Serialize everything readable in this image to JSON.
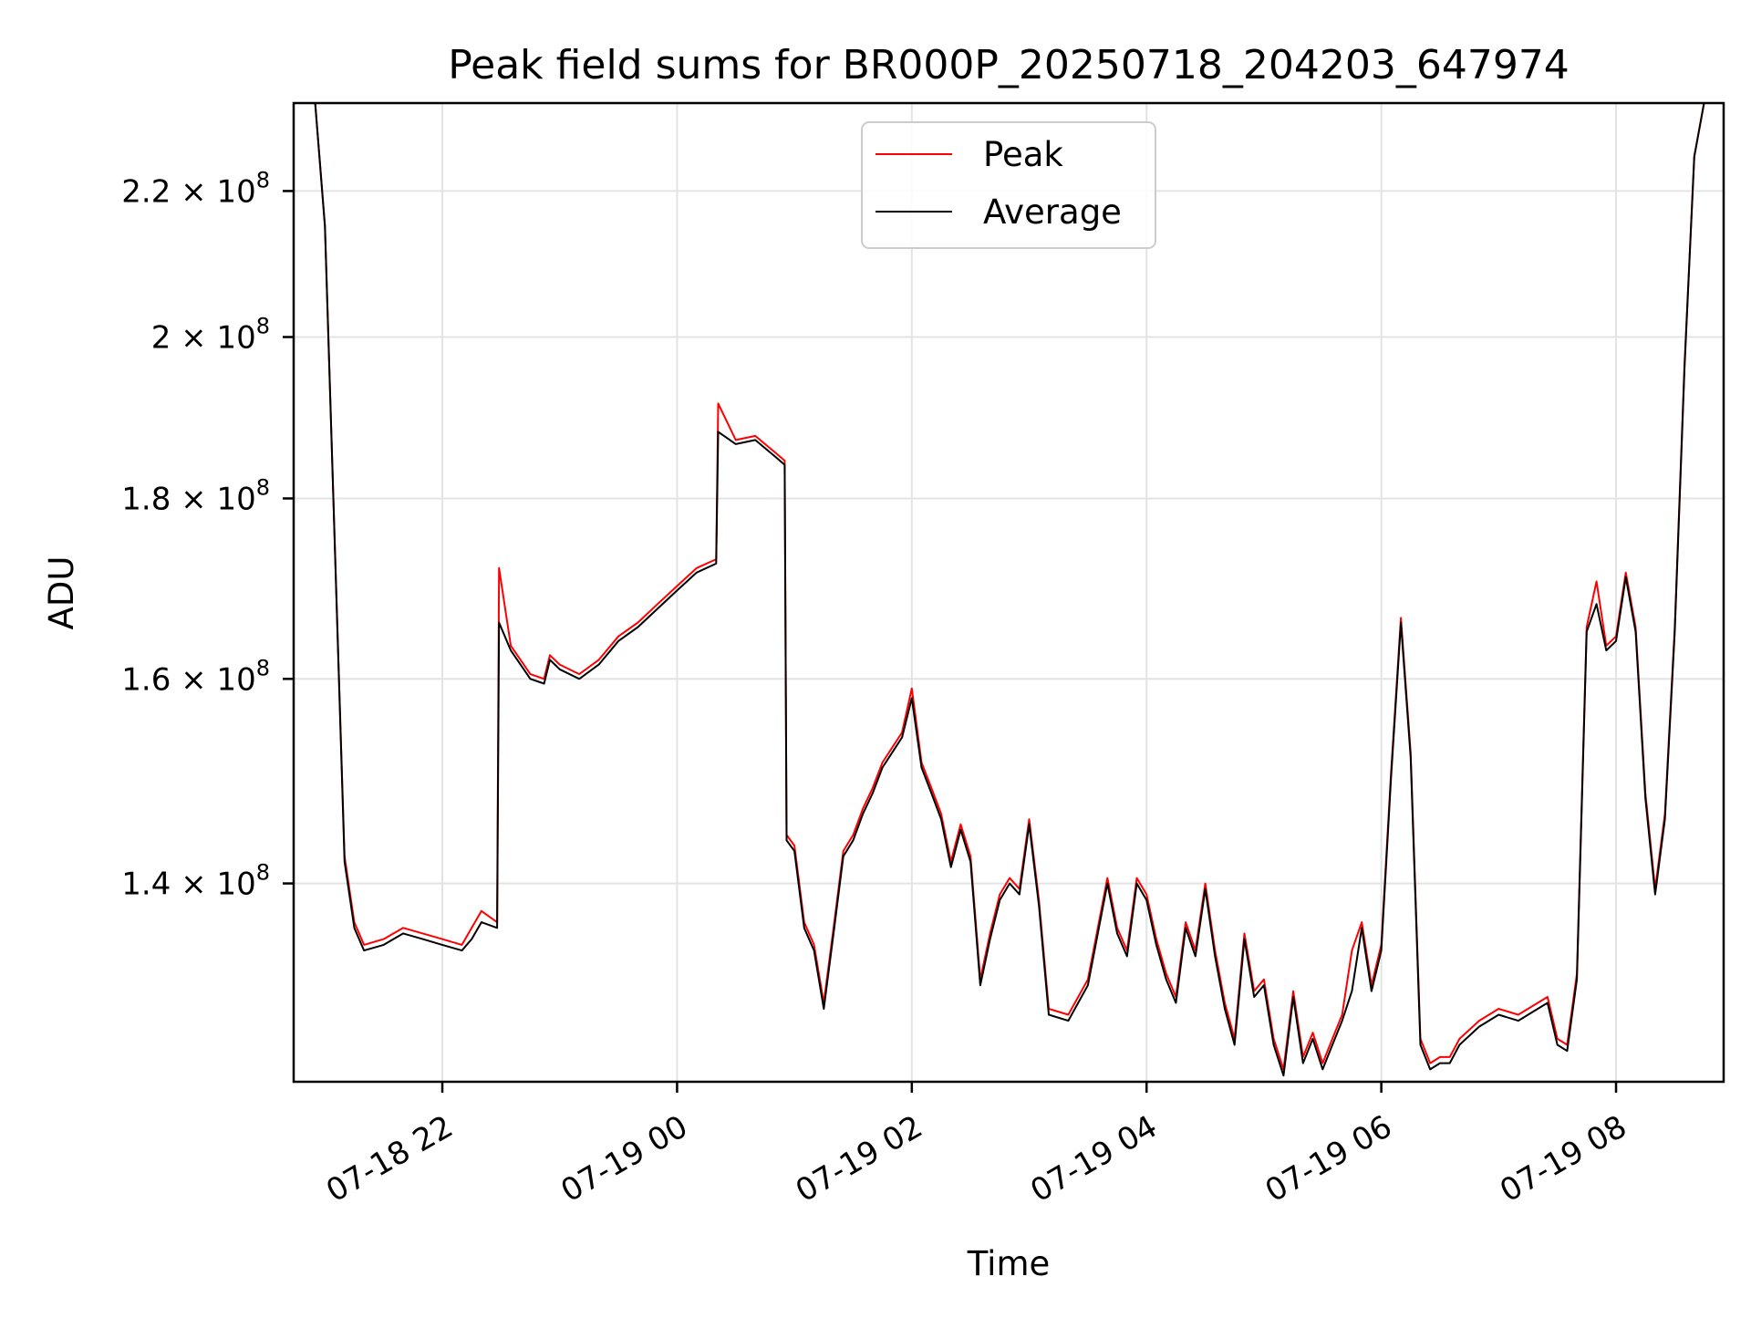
{
  "chart_data": {
    "type": "line",
    "title": "Peak field sums for BR000P_20250718_204203_647974",
    "xlabel": "Time",
    "ylabel": "ADU",
    "y_scale": "log",
    "ylim": [
      123000000,
      233000000
    ],
    "xlim": [
      "07-18 20:44",
      "07-19 08:55"
    ],
    "grid": true,
    "legend_position": "top-center",
    "x_ticks": [
      "07-18 22:00",
      "07-19 00:00",
      "07-19 02:00",
      "07-19 04:00",
      "07-19 06:00",
      "07-19 08:00"
    ],
    "x_tick_labels": [
      "07-18 22",
      "07-19 00",
      "07-19 02",
      "07-19 04",
      "07-19 06",
      "07-19 08"
    ],
    "y_ticks": [
      {
        "value": 140000000,
        "mantissa": "1.4",
        "exponent": "8"
      },
      {
        "value": 160000000,
        "mantissa": "1.6",
        "exponent": "8"
      },
      {
        "value": 180000000,
        "mantissa": "1.8",
        "exponent": "8"
      },
      {
        "value": 200000000,
        "mantissa": "2",
        "exponent": "8"
      },
      {
        "value": 220000000,
        "mantissa": "2.2",
        "exponent": "8"
      }
    ],
    "times_symbol": "×",
    "y_tick_base": "10",
    "series": [
      {
        "name": "Peak",
        "color": "#ff0000"
      },
      {
        "name": "Average",
        "color": "#000000"
      }
    ],
    "x": [
      "07-18 20:44",
      "07-18 20:52",
      "07-18 20:55",
      "07-18 21:00",
      "07-18 21:05",
      "07-18 21:10",
      "07-18 21:15",
      "07-18 21:20",
      "07-18 21:30",
      "07-18 21:40",
      "07-18 21:50",
      "07-18 22:00",
      "07-18 22:10",
      "07-18 22:15",
      "07-18 22:20",
      "07-18 22:28",
      "07-18 22:29",
      "07-18 22:35",
      "07-18 22:45",
      "07-18 22:52",
      "07-18 22:55",
      "07-18 23:00",
      "07-18 23:10",
      "07-18 23:20",
      "07-18 23:30",
      "07-18 23:40",
      "07-18 23:50",
      "07-19 00:00",
      "07-19 00:10",
      "07-19 00:20",
      "07-19 00:21",
      "07-19 00:30",
      "07-19 00:40",
      "07-19 00:45",
      "07-19 00:50",
      "07-19 00:55",
      "07-19 00:56",
      "07-19 01:00",
      "07-19 01:05",
      "07-19 01:10",
      "07-19 01:15",
      "07-19 01:20",
      "07-19 01:25",
      "07-19 01:30",
      "07-19 01:35",
      "07-19 01:40",
      "07-19 01:45",
      "07-19 01:50",
      "07-19 01:55",
      "07-19 02:00",
      "07-19 02:05",
      "07-19 02:10",
      "07-19 02:15",
      "07-19 02:20",
      "07-19 02:25",
      "07-19 02:30",
      "07-19 02:35",
      "07-19 02:40",
      "07-19 02:45",
      "07-19 02:50",
      "07-19 02:55",
      "07-19 03:00",
      "07-19 03:05",
      "07-19 03:10",
      "07-19 03:20",
      "07-19 03:30",
      "07-19 03:40",
      "07-19 03:45",
      "07-19 03:50",
      "07-19 03:55",
      "07-19 04:00",
      "07-19 04:05",
      "07-19 04:10",
      "07-19 04:15",
      "07-19 04:20",
      "07-19 04:25",
      "07-19 04:30",
      "07-19 04:35",
      "07-19 04:40",
      "07-19 04:45",
      "07-19 04:50",
      "07-19 04:55",
      "07-19 05:00",
      "07-19 05:05",
      "07-19 05:10",
      "07-19 05:15",
      "07-19 05:20",
      "07-19 05:25",
      "07-19 05:30",
      "07-19 05:35",
      "07-19 05:40",
      "07-19 05:45",
      "07-19 05:50",
      "07-19 05:55",
      "07-19 06:00",
      "07-19 06:05",
      "07-19 06:10",
      "07-19 06:15",
      "07-19 06:20",
      "07-19 06:25",
      "07-19 06:30",
      "07-19 06:35",
      "07-19 06:40",
      "07-19 06:50",
      "07-19 07:00",
      "07-19 07:10",
      "07-19 07:20",
      "07-19 07:25",
      "07-19 07:30",
      "07-19 07:35",
      "07-19 07:40",
      "07-19 07:45",
      "07-19 07:50",
      "07-19 07:55",
      "07-19 08:00",
      "07-19 08:05",
      "07-19 08:10",
      "07-19 08:15",
      "07-19 08:20",
      "07-19 08:25",
      "07-19 08:30",
      "07-19 08:35",
      "07-19 08:40",
      "07-19 08:45",
      "07-19 08:50",
      "07-19 08:55"
    ],
    "average": [
      233000000,
      233000000,
      233000000,
      215000000,
      175000000,
      142000000,
      136000000,
      134000000,
      134500000,
      135500000,
      135000000,
      134500000,
      134000000,
      135000000,
      136500000,
      136000000,
      166000000,
      163000000,
      160000000,
      159500000,
      162000000,
      161000000,
      160000000,
      161500000,
      164000000,
      165500000,
      167500000,
      169500000,
      171500000,
      172500000,
      188000000,
      186500000,
      187000000,
      186000000,
      185000000,
      184000000,
      144000000,
      143000000,
      136000000,
      134000000,
      129000000,
      135500000,
      142500000,
      144000000,
      146500000,
      148500000,
      151000000,
      152500000,
      154000000,
      158000000,
      151000000,
      148500000,
      146000000,
      141500000,
      145000000,
      142000000,
      131000000,
      135000000,
      138500000,
      140000000,
      139000000,
      145500000,
      138000000,
      128500000,
      128000000,
      131000000,
      140000000,
      135500000,
      133500000,
      140000000,
      138500000,
      134500000,
      131500000,
      129500000,
      136000000,
      133500000,
      139500000,
      133500000,
      129000000,
      126000000,
      135000000,
      130000000,
      131000000,
      126000000,
      123500000,
      130000000,
      124500000,
      126500000,
      124000000,
      126000000,
      128000000,
      130500000,
      136000000,
      130500000,
      134000000,
      150000000,
      166000000,
      152000000,
      126000000,
      124000000,
      124500000,
      124500000,
      126000000,
      127500000,
      128500000,
      128000000,
      129000000,
      129500000,
      126000000,
      125500000,
      131500000,
      165000000,
      168000000,
      163000000,
      164000000,
      171000000,
      165000000,
      148000000,
      139000000,
      146000000,
      165000000,
      196000000,
      225000000,
      233000000,
      233000000,
      233000000
    ],
    "peak": [
      233000000,
      233000000,
      233000000,
      215000000,
      175000000,
      142500000,
      136500000,
      134500000,
      135000000,
      136000000,
      135500000,
      135000000,
      134500000,
      136000000,
      137500000,
      136500000,
      172000000,
      163500000,
      160500000,
      160000000,
      162500000,
      161500000,
      160500000,
      162000000,
      164500000,
      166000000,
      168000000,
      170000000,
      172000000,
      173000000,
      191500000,
      187000000,
      187500000,
      186500000,
      185500000,
      184500000,
      144500000,
      143500000,
      136500000,
      134500000,
      129500000,
      136000000,
      143000000,
      144500000,
      147000000,
      149000000,
      151500000,
      153000000,
      154500000,
      159000000,
      151500000,
      149000000,
      146500000,
      142000000,
      145500000,
      142500000,
      131500000,
      135500000,
      139000000,
      140500000,
      139500000,
      146000000,
      138500000,
      129000000,
      128500000,
      131500000,
      140500000,
      136000000,
      134000000,
      140500000,
      139000000,
      135000000,
      132000000,
      130000000,
      136500000,
      134000000,
      140000000,
      134000000,
      129500000,
      126500000,
      135500000,
      130500000,
      131500000,
      126500000,
      124000000,
      130500000,
      125000000,
      127000000,
      124500000,
      126500000,
      128500000,
      134000000,
      136500000,
      131000000,
      134500000,
      150500000,
      166500000,
      152500000,
      126500000,
      124500000,
      125000000,
      125000000,
      126500000,
      128000000,
      129000000,
      128500000,
      129500000,
      130000000,
      126500000,
      126000000,
      132000000,
      165500000,
      170500000,
      163500000,
      164500000,
      171500000,
      165500000,
      148500000,
      139500000,
      146500000,
      165500000,
      196500000,
      225000000,
      233000000,
      233000000,
      233000000
    ]
  }
}
